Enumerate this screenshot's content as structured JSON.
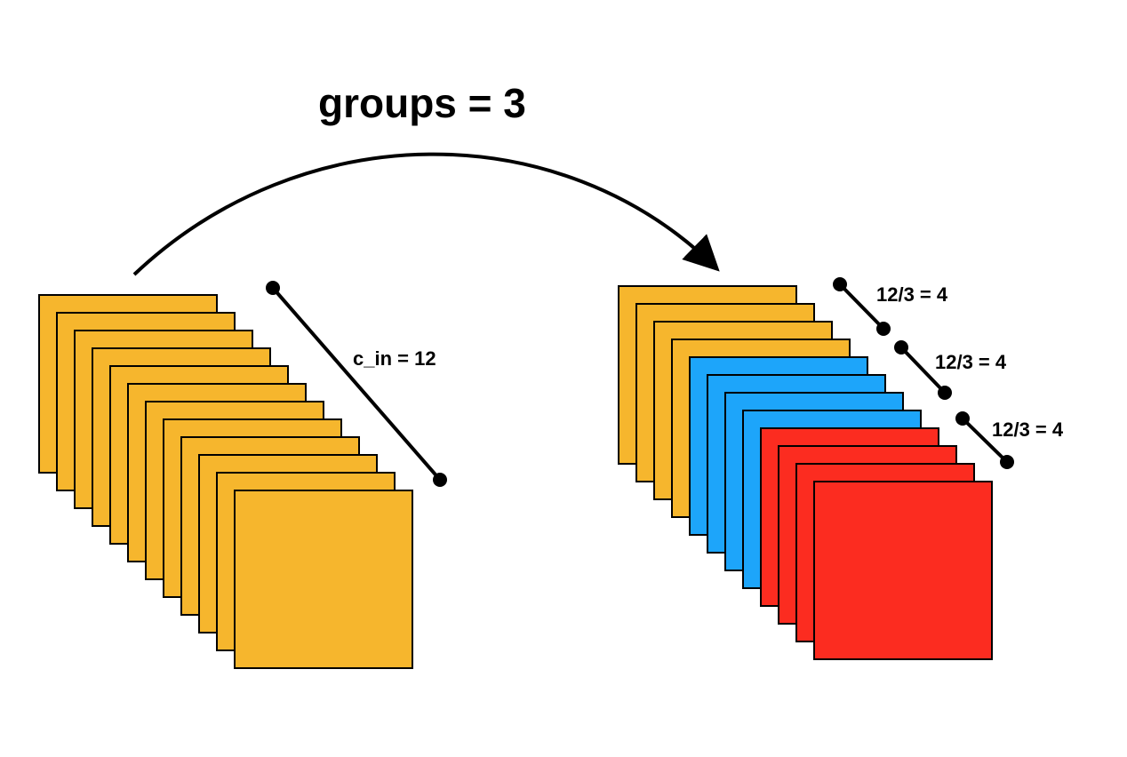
{
  "title": "groups = 3",
  "input": {
    "label": "c_in = 12",
    "channels": 12,
    "color": "#F6B62D"
  },
  "output": {
    "groups": [
      {
        "label": "12/3 = 4",
        "count": 4,
        "color": "#F6B62D"
      },
      {
        "label": "12/3 = 4",
        "count": 4,
        "color": "#1DA5FA"
      },
      {
        "label": "12/3 = 4",
        "count": 4,
        "color": "#FC2C20"
      }
    ]
  },
  "colors": {
    "stroke": "#000000",
    "background": "#ffffff"
  }
}
